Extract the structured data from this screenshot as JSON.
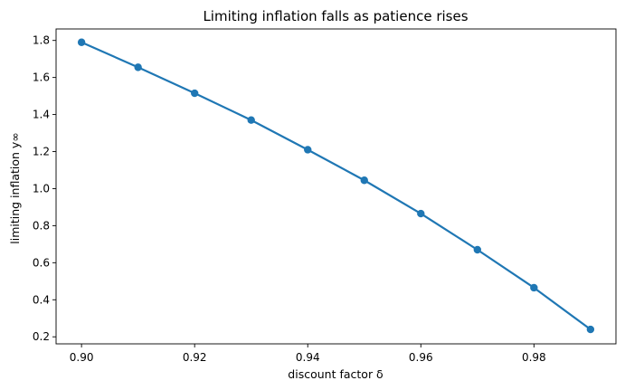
{
  "chart_data": {
    "type": "line",
    "title": "Limiting inflation falls as patience rises",
    "xlabel": "discount factor δ",
    "ylabel": "limiting inflation y∞",
    "xlim": [
      0.8955,
      0.9945
    ],
    "ylim": [
      0.162,
      1.862
    ],
    "xticks": [
      0.9,
      0.92,
      0.94,
      0.96,
      0.98
    ],
    "xtick_labels": [
      "0.90",
      "0.92",
      "0.94",
      "0.96",
      "0.98"
    ],
    "yticks": [
      0.2,
      0.4,
      0.6,
      0.8,
      1.0,
      1.2,
      1.4,
      1.6,
      1.8
    ],
    "ytick_labels": [
      "0.2",
      "0.4",
      "0.6",
      "0.8",
      "1.0",
      "1.2",
      "1.4",
      "1.6",
      "1.8"
    ],
    "grid": false,
    "series": [
      {
        "color": "#1f77b4",
        "marker": "circle",
        "x": [
          0.9,
          0.91,
          0.92,
          0.93,
          0.94,
          0.95,
          0.96,
          0.97,
          0.98,
          0.99
        ],
        "y": [
          1.79,
          1.655,
          1.515,
          1.37,
          1.21,
          1.045,
          0.865,
          0.67,
          0.465,
          0.24
        ]
      }
    ]
  }
}
